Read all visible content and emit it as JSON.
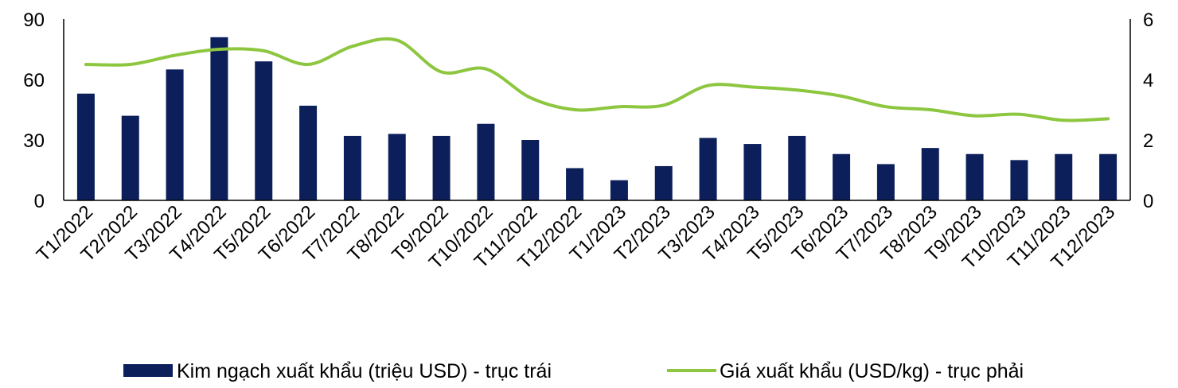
{
  "chart_data": {
    "type": "bar",
    "categories": [
      "T1/2022",
      "T2/2022",
      "T3/2022",
      "T4/2022",
      "T5/2022",
      "T6/2022",
      "T7/2022",
      "T8/2022",
      "T9/2022",
      "T10/2022",
      "T11/2022",
      "T12/2022",
      "T1/2023",
      "T2/2023",
      "T3/2023",
      "T4/2023",
      "T5/2023",
      "T6/2023",
      "T7/2023",
      "T8/2023",
      "T9/2023",
      "T10/2023",
      "T11/2023",
      "T12/2023"
    ],
    "series": [
      {
        "name": "Kim ngạch xuất khẩu (triệu USD) - trục trái",
        "type": "bar",
        "axis": "left",
        "color": "#0c1f5b",
        "values": [
          53,
          42,
          65,
          81,
          69,
          47,
          32,
          33,
          32,
          38,
          30,
          16,
          10,
          17,
          31,
          28,
          32,
          23,
          18,
          26,
          23,
          20,
          23,
          23
        ]
      },
      {
        "name": "Giá xuất khẩu (USD/kg) - trục phải",
        "type": "line",
        "axis": "right",
        "color": "#8dc63f",
        "values": [
          4.5,
          4.5,
          4.8,
          5.0,
          4.95,
          4.5,
          5.1,
          5.3,
          4.25,
          4.35,
          3.4,
          3.0,
          3.1,
          3.15,
          3.8,
          3.75,
          3.65,
          3.45,
          3.1,
          3.0,
          2.8,
          2.85,
          2.65,
          2.7
        ]
      }
    ],
    "y_left": {
      "ylim": [
        0,
        90
      ],
      "ticks": [
        "0",
        "30",
        "60",
        "90"
      ]
    },
    "y_right": {
      "ylim": [
        0,
        6
      ],
      "ticks": [
        "0",
        "2",
        "4",
        "6"
      ]
    },
    "grid": false,
    "legend_position": "bottom"
  }
}
